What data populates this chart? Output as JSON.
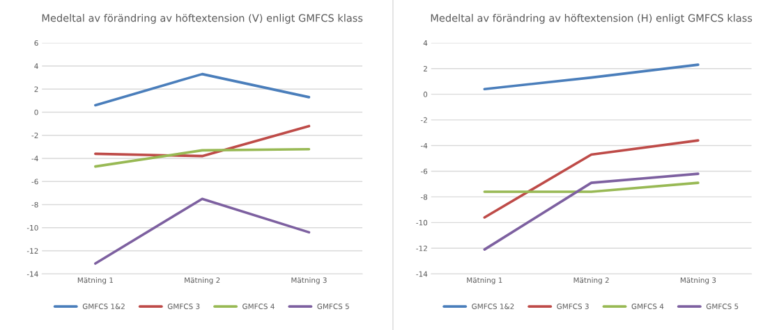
{
  "chart_data": [
    {
      "type": "line",
      "title": "Medeltal av förändring av höftextension (V) enligt GMFCS klass",
      "categories": [
        "Mätning 1",
        "Mätning 2",
        "Mätning 3"
      ],
      "ylim": [
        -14,
        6
      ],
      "yticks": [
        -14,
        -12,
        -10,
        -8,
        -6,
        -4,
        -2,
        0,
        2,
        4,
        6
      ],
      "grid": "y",
      "legend": "bottom",
      "marker": "none",
      "series": [
        {
          "name": "GMFCS 1&2",
          "color": "#4a7ebb",
          "values": [
            0.6,
            3.3,
            1.3
          ]
        },
        {
          "name": "GMFCS 3",
          "color": "#be4b48",
          "values": [
            -3.6,
            -3.8,
            -1.2
          ]
        },
        {
          "name": "GMFCS 4",
          "color": "#98b954",
          "values": [
            -4.7,
            -3.3,
            -3.2
          ]
        },
        {
          "name": "GMFCS 5",
          "color": "#7d60a0",
          "values": [
            -13.1,
            -7.5,
            -10.4
          ]
        }
      ]
    },
    {
      "type": "line",
      "title": "Medeltal av förändring av höftextension (H) enligt GMFCS klass",
      "categories": [
        "Mätning 1",
        "Mätning 2",
        "Mätning 3"
      ],
      "ylim": [
        -14,
        4
      ],
      "yticks": [
        -14,
        -12,
        -10,
        -8,
        -6,
        -4,
        -2,
        0,
        2,
        4
      ],
      "grid": "y",
      "legend": "bottom",
      "marker": "none",
      "series": [
        {
          "name": "GMFCS 1&2",
          "color": "#4a7ebb",
          "values": [
            0.4,
            1.3,
            2.3
          ]
        },
        {
          "name": "GMFCS 3",
          "color": "#be4b48",
          "values": [
            -9.6,
            -4.7,
            -3.6
          ]
        },
        {
          "name": "GMFCS 4",
          "color": "#98b954",
          "values": [
            -7.6,
            -7.6,
            -6.9
          ]
        },
        {
          "name": "GMFCS 5",
          "color": "#7d60a0",
          "values": [
            -12.1,
            -6.9,
            -6.2
          ]
        }
      ]
    }
  ]
}
